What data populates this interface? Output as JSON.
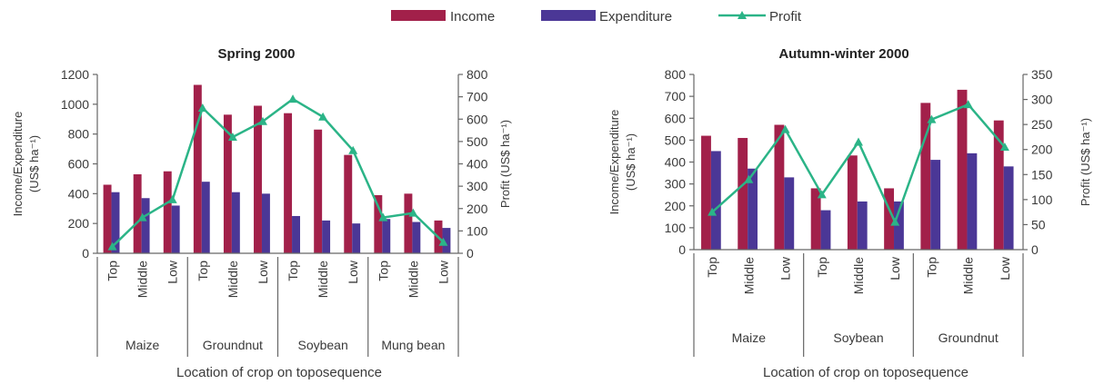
{
  "legend": {
    "income": "Income",
    "expenditure": "Expenditure",
    "profit": "Profit"
  },
  "colors": {
    "income": "#a2204a",
    "expenditure": "#4b3796",
    "profit": "#2bb487"
  },
  "chart_data": [
    {
      "type": "bar",
      "title": "Spring 2000",
      "ylabel": [
        "Income/Expenditure",
        "(US$ ha⁻¹)"
      ],
      "y2label": "Profit (US$ ha⁻¹)",
      "xlabel": "Location of crop on toposequence",
      "ylim": [
        0,
        1200
      ],
      "yticks": [
        0,
        200,
        400,
        600,
        800,
        1000,
        1200
      ],
      "y2lim": [
        0,
        800
      ],
      "y2ticks": [
        0,
        100,
        200,
        300,
        400,
        500,
        600,
        700,
        800
      ],
      "groups": [
        "Maize",
        "Groundnut",
        "Soybean",
        "Mung bean"
      ],
      "categories": [
        "Top",
        "Middle",
        "Low",
        "Top",
        "Middle",
        "Low",
        "Top",
        "Middle",
        "Low",
        "Top",
        "Middle",
        "Low"
      ],
      "series": [
        {
          "name": "Income",
          "axis": "left",
          "values": [
            460,
            530,
            550,
            1130,
            930,
            990,
            940,
            830,
            660,
            390,
            400,
            220
          ]
        },
        {
          "name": "Expenditure",
          "axis": "left",
          "values": [
            410,
            370,
            320,
            480,
            410,
            400,
            250,
            220,
            200,
            230,
            210,
            170
          ]
        },
        {
          "name": "Profit",
          "axis": "right",
          "type": "line",
          "values": [
            30,
            160,
            240,
            650,
            520,
            590,
            690,
            610,
            460,
            160,
            180,
            50
          ]
        }
      ],
      "grid": false,
      "legend_position": "top"
    },
    {
      "type": "bar",
      "title": "Autumn-winter 2000",
      "ylabel": [
        "Income/Expenditure",
        "(US$ ha⁻¹)"
      ],
      "y2label": "Profit (US$ ha⁻¹)",
      "xlabel": "Location of crop on toposequence",
      "ylim": [
        0,
        800
      ],
      "yticks": [
        0,
        100,
        200,
        300,
        400,
        500,
        600,
        700,
        800
      ],
      "y2lim": [
        0,
        350
      ],
      "y2ticks": [
        0,
        50,
        100,
        150,
        200,
        250,
        300,
        350
      ],
      "groups": [
        "Maize",
        "Soybean",
        "Groundnut"
      ],
      "categories": [
        "Top",
        "Middle",
        "Low",
        "Top",
        "Middle",
        "Low",
        "Top",
        "Middle",
        "Low"
      ],
      "series": [
        {
          "name": "Income",
          "axis": "left",
          "values": [
            520,
            510,
            570,
            280,
            430,
            280,
            670,
            730,
            590
          ]
        },
        {
          "name": "Expenditure",
          "axis": "left",
          "values": [
            450,
            370,
            330,
            180,
            220,
            220,
            410,
            440,
            380
          ]
        },
        {
          "name": "Profit",
          "axis": "right",
          "type": "line",
          "values": [
            75,
            140,
            240,
            110,
            215,
            55,
            260,
            290,
            205
          ]
        }
      ],
      "grid": false,
      "legend_position": "top"
    }
  ]
}
